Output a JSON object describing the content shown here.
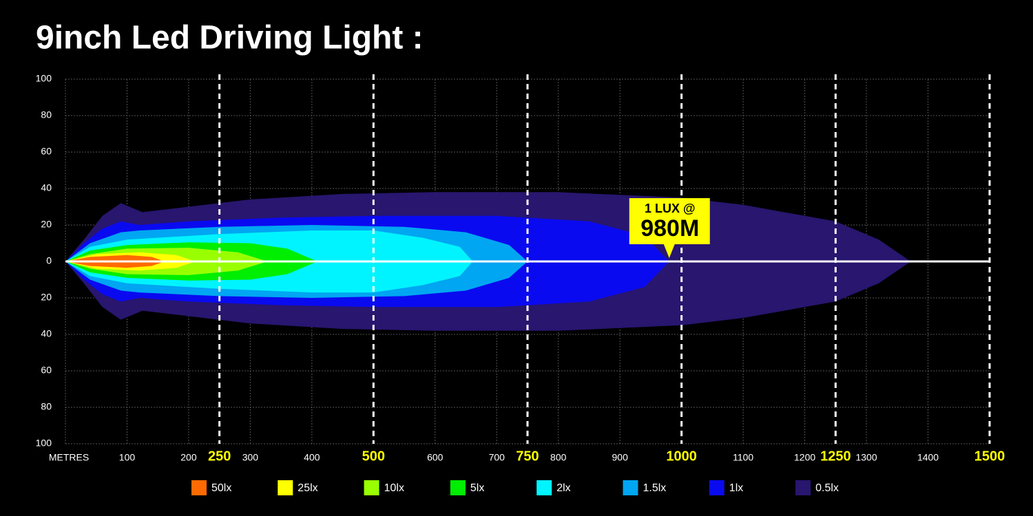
{
  "chart_data": {
    "type": "beam-pattern",
    "title": "9inch Led Driving Light :",
    "x_label": "METRES",
    "xlim": [
      0,
      1500
    ],
    "ylim": [
      -100,
      100
    ],
    "xticks": [
      100,
      200,
      300,
      400,
      600,
      700,
      800,
      900,
      1100,
      1200,
      1300,
      1400
    ],
    "major_xticks": [
      250,
      500,
      750,
      1000,
      1250,
      1500
    ],
    "yticks": [
      100,
      80,
      60,
      40,
      20,
      0,
      {
        "value": -20,
        "label": "20"
      },
      {
        "value": -40,
        "label": "40"
      },
      {
        "value": -60,
        "label": "60"
      },
      {
        "value": -80,
        "label": "80"
      },
      {
        "value": -100,
        "label": "100"
      }
    ],
    "grid": true,
    "series": [
      {
        "name": "50lx",
        "color": "#ff6a00",
        "x": [
          0,
          40,
          100,
          140,
          161
        ],
        "values": [
          0,
          2.5,
          3.5,
          2.5,
          0
        ]
      },
      {
        "name": "25lx",
        "color": "#ffff00",
        "x": [
          0,
          50,
          120,
          180,
          211
        ],
        "values": [
          0,
          4,
          5,
          3.5,
          0
        ]
      },
      {
        "name": "10lx",
        "color": "#99ff00",
        "x": [
          0,
          40,
          100,
          200,
          280,
          328
        ],
        "values": [
          0,
          4,
          7,
          7.5,
          5,
          0
        ]
      },
      {
        "name": "5lx",
        "color": "#00ee00",
        "x": [
          0,
          40,
          100,
          200,
          300,
          360,
          409
        ],
        "values": [
          0,
          6,
          9,
          10.5,
          10,
          7,
          0
        ]
      },
      {
        "name": "2lx",
        "color": "#00f4ff",
        "x": [
          0,
          40,
          100,
          250,
          400,
          500,
          580,
          640,
          661
        ],
        "values": [
          0,
          8,
          12,
          15,
          17,
          17,
          13,
          8,
          0
        ]
      },
      {
        "name": "1.5lx",
        "color": "#00a6f2",
        "x": [
          0,
          40,
          90,
          120,
          250,
          400,
          550,
          650,
          720,
          750
        ],
        "values": [
          0,
          10,
          16,
          17,
          19,
          20,
          19,
          16,
          9,
          0
        ]
      },
      {
        "name": "1lx",
        "color": "#0a0af0",
        "x": [
          0,
          30,
          60,
          90,
          120,
          200,
          350,
          500,
          700,
          850,
          940,
          980
        ],
        "values": [
          0,
          10,
          18,
          22,
          20,
          22,
          24,
          25,
          25,
          22,
          14,
          0
        ]
      },
      {
        "name": "0.5lx",
        "color": "#28166f",
        "x": [
          0,
          30,
          60,
          90,
          125,
          200,
          300,
          450,
          600,
          800,
          1000,
          1100,
          1250,
          1320,
          1372
        ],
        "values": [
          0,
          12,
          25,
          32,
          27,
          30,
          34,
          37,
          38,
          38,
          35,
          31,
          22,
          12,
          0
        ]
      }
    ],
    "annotation": {
      "lines": [
        "1 LUX @",
        "980M"
      ],
      "x": 980
    }
  }
}
